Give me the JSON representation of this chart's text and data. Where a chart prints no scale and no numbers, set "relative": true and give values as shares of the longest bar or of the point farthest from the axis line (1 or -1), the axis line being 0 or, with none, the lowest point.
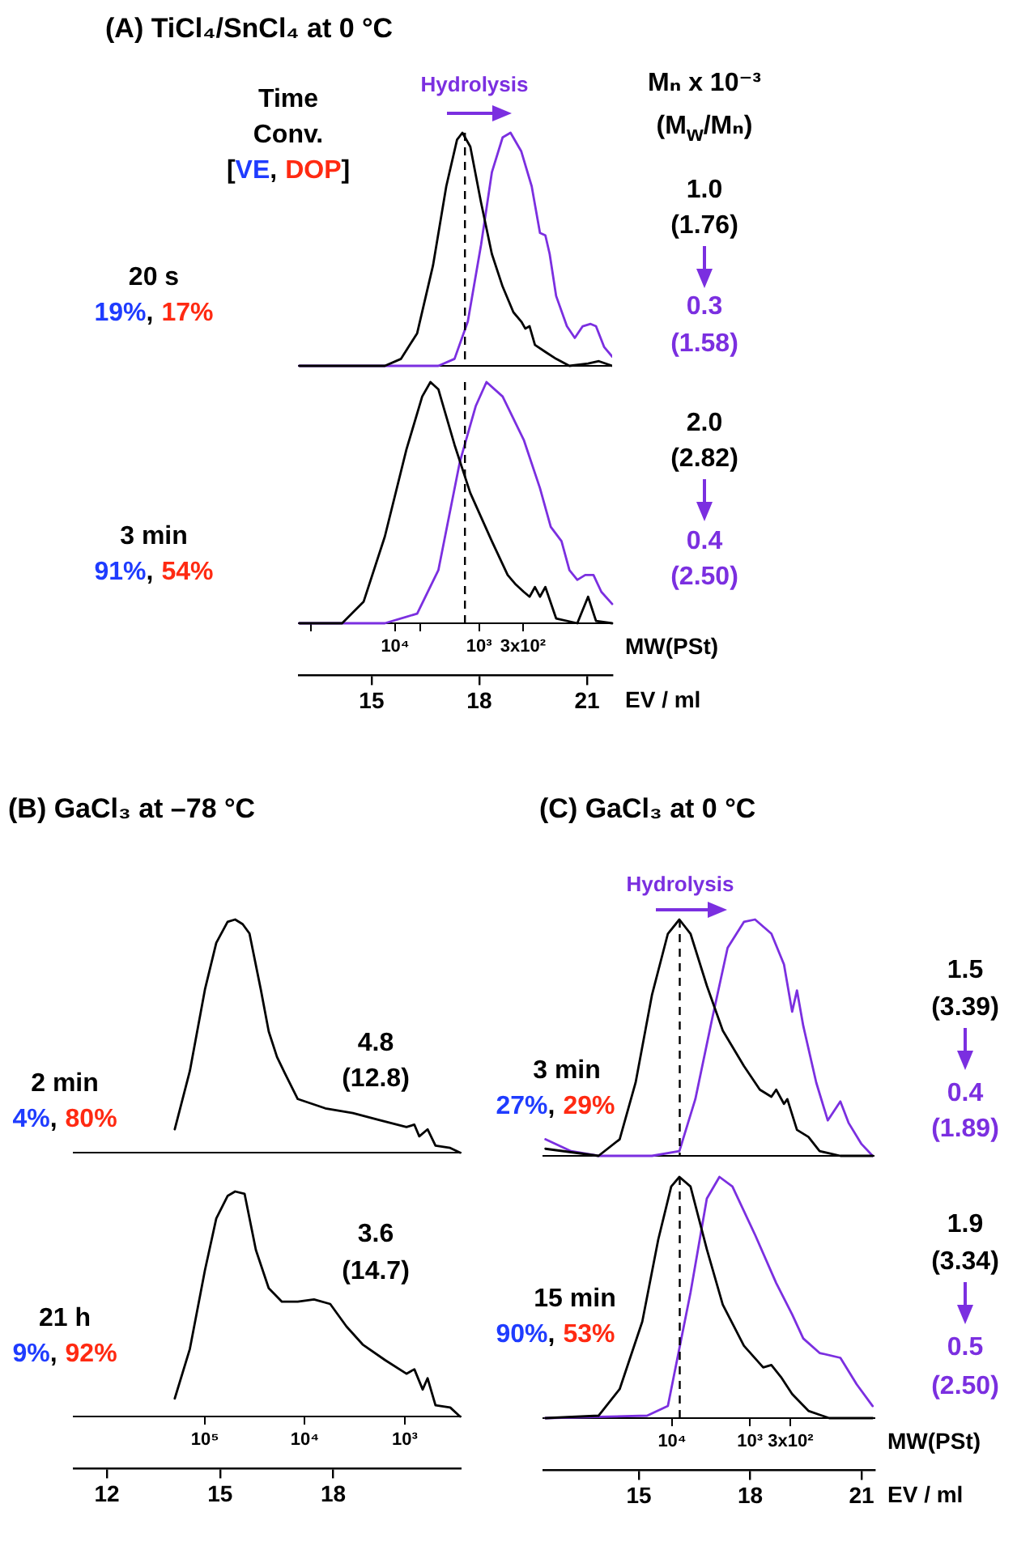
{
  "chart_data": [
    {
      "type": "line",
      "title": "(A) TiCl₄/SnCl₄ at 0 °C",
      "relative": true,
      "tick_labels": false,
      "xlim": [
        12.95,
        21.7
      ],
      "annotations": [
        "Time",
        "Conv.",
        "[",
        "VE",
        ",",
        "DOP",
        "]",
        "Hydrolysis",
        "Mₙ x 10⁻³",
        "(M$_{w}$/Mₙ)",
        "20 s",
        "19%",
        ",",
        "17%",
        "1.0",
        "(1.76)",
        "0.3",
        "(1.58)"
      ],
      "ref_lines": [
        {
          "axis": "x",
          "value": 17.6,
          "color": "#000000",
          "line_style": "dashed"
        }
      ],
      "series": [
        {
          "color": "#000000",
          "x": [
            12.99,
            15.37,
            15.82,
            16.27,
            16.71,
            17.08,
            17.38,
            17.53,
            17.75,
            18.05,
            18.35,
            18.65,
            18.95,
            19.17,
            19.28,
            19.4,
            19.55,
            19.84,
            20.14,
            20.51,
            21.03,
            21.33,
            21.7
          ],
          "values": [
            0,
            0,
            0.03,
            0.14,
            0.43,
            0.77,
            0.97,
            1,
            0.94,
            0.7,
            0.48,
            0.34,
            0.23,
            0.19,
            0.16,
            0.17,
            0.09,
            0.06,
            0.03,
            0,
            0.01,
            0.02,
            0
          ]
        },
        {
          "color": "#7b2fe0",
          "x": [
            12.99,
            16.86,
            17.31,
            17.68,
            18.05,
            18.35,
            18.65,
            18.87,
            19.17,
            19.46,
            19.69,
            19.84,
            19.96,
            20.14,
            20.44,
            20.66,
            20.88,
            21.1,
            21.25,
            21.48,
            21.7
          ],
          "values": [
            0,
            0,
            0.03,
            0.19,
            0.52,
            0.83,
            0.98,
            1,
            0.92,
            0.77,
            0.57,
            0.56,
            0.48,
            0.3,
            0.17,
            0.12,
            0.17,
            0.18,
            0.17,
            0.08,
            0.04
          ]
        }
      ]
    },
    {
      "type": "line",
      "relative": true,
      "tick_labels": "x",
      "xlim": [
        12.95,
        21.7
      ],
      "xticks": [
        15,
        18,
        21
      ],
      "xlabel": "EV / ml",
      "x2label": "MW(PSt)",
      "log": "x2",
      "x2lim": [
        144000,
        26
      ],
      "x2ticks": [
        {
          "value": 100000,
          "label": null
        },
        {
          "value": 10000,
          "label": "10⁴"
        },
        {
          "value": 5000,
          "label": null
        },
        {
          "value": 1000,
          "label": "10³"
        },
        {
          "value": 300,
          "label": "3x10²"
        }
      ],
      "annotations": [
        "3 min",
        "91%",
        ",",
        "54%",
        "2.0",
        "(2.82)",
        "0.4",
        "(2.50)"
      ],
      "ref_lines": [
        {
          "axis": "x",
          "value": 17.6,
          "color": "#000000",
          "line_style": "dashed"
        }
      ],
      "series": [
        {
          "color": "#000000",
          "x": [
            12.99,
            14.18,
            14.78,
            15.37,
            15.97,
            16.41,
            16.64,
            16.86,
            17.31,
            17.75,
            18.35,
            18.79,
            19.02,
            19.24,
            19.4,
            19.55,
            19.69,
            19.84,
            20.14,
            20.73,
            21.03,
            21.25,
            21.7
          ],
          "values": [
            0,
            0,
            0.09,
            0.36,
            0.72,
            0.94,
            1,
            0.97,
            0.74,
            0.54,
            0.34,
            0.2,
            0.16,
            0.13,
            0.11,
            0.15,
            0.11,
            0.15,
            0.02,
            0,
            0.11,
            0.01,
            0
          ]
        },
        {
          "color": "#7b2fe0",
          "x": [
            12.99,
            15.37,
            16.27,
            16.86,
            17.46,
            17.9,
            18.2,
            18.65,
            19.24,
            19.69,
            19.99,
            20.29,
            20.51,
            20.73,
            20.95,
            21.18,
            21.4,
            21.7
          ],
          "values": [
            0,
            0,
            0.04,
            0.22,
            0.67,
            0.9,
            1,
            0.94,
            0.76,
            0.56,
            0.4,
            0.34,
            0.22,
            0.18,
            0.2,
            0.2,
            0.13,
            0.08
          ]
        }
      ]
    },
    {
      "type": "line",
      "title": "(B) GaCl₃ at –78 °C",
      "relative": true,
      "tick_labels": false,
      "xlim": [
        11.1,
        21.4
      ],
      "annotations": [
        "2 min",
        "4%",
        ",",
        "80%",
        "4.8",
        "(12.8)"
      ],
      "series": [
        {
          "color": "#000000",
          "x": [
            13.8,
            14.2,
            14.6,
            14.9,
            15.2,
            15.4,
            15.6,
            15.78,
            16.08,
            16.29,
            16.51,
            16.72,
            17.06,
            17.79,
            18.52,
            19.21,
            19.94,
            20.15,
            20.28,
            20.5,
            20.71,
            21.1,
            21.36
          ],
          "values": [
            0.1,
            0.35,
            0.7,
            0.9,
            0.99,
            1,
            0.98,
            0.94,
            0.7,
            0.52,
            0.41,
            0.34,
            0.23,
            0.19,
            0.17,
            0.14,
            0.11,
            0.12,
            0.07,
            0.1,
            0.03,
            0.02,
            0
          ]
        }
      ]
    },
    {
      "type": "line",
      "relative": true,
      "tick_labels": "x",
      "xlim": [
        11.1,
        21.4
      ],
      "xticks": [
        12,
        15,
        18
      ],
      "log": "x2",
      "x2lim": [
        2100000,
        270
      ],
      "x2ticks": [
        {
          "value": 100000,
          "label": "10⁵"
        },
        {
          "value": 10000,
          "label": "10⁴"
        },
        {
          "value": 1000,
          "label": "10³"
        }
      ],
      "annotations": [
        "21 h",
        "9%",
        ",",
        "92%",
        "3.6",
        "(14.7)"
      ],
      "series": [
        {
          "color": "#000000",
          "x": [
            13.8,
            14.2,
            14.6,
            14.9,
            15.2,
            15.4,
            15.65,
            15.95,
            16.29,
            16.64,
            17.06,
            17.49,
            17.92,
            18.35,
            18.78,
            19.38,
            19.94,
            20.15,
            20.37,
            20.5,
            20.71,
            21.1,
            21.36
          ],
          "values": [
            0.08,
            0.3,
            0.65,
            0.88,
            0.98,
            1,
            0.99,
            0.74,
            0.57,
            0.51,
            0.51,
            0.52,
            0.5,
            0.4,
            0.32,
            0.25,
            0.19,
            0.21,
            0.12,
            0.17,
            0.05,
            0.04,
            0
          ]
        }
      ]
    },
    {
      "type": "line",
      "title": "(C) GaCl₃ at 0 °C",
      "relative": true,
      "tick_labels": false,
      "xlim": [
        12.4,
        21.35
      ],
      "annotations": [
        "Hydrolysis",
        "3 min",
        "27%",
        ",",
        "29%",
        "1.5",
        "(3.39)",
        "0.4",
        "(1.89)"
      ],
      "ref_lines": [
        {
          "axis": "x",
          "value": 16.1,
          "color": "#000000",
          "line_style": "dashed"
        }
      ],
      "series": [
        {
          "color": "#000000",
          "x": [
            12.48,
            13.91,
            14.48,
            14.91,
            15.35,
            15.78,
            16.09,
            16.39,
            16.83,
            17.26,
            17.83,
            18.26,
            18.57,
            18.7,
            18.91,
            19.0,
            19.26,
            19.57,
            19.87,
            20.43,
            21.3
          ],
          "values": [
            0.03,
            0,
            0.07,
            0.31,
            0.68,
            0.94,
            1,
            0.94,
            0.72,
            0.53,
            0.38,
            0.28,
            0.25,
            0.28,
            0.22,
            0.24,
            0.11,
            0.08,
            0.02,
            0,
            0
          ]
        },
        {
          "color": "#7b2fe0",
          "x": [
            12.48,
            13.17,
            13.91,
            15.35,
            16.09,
            16.52,
            16.96,
            17.39,
            17.83,
            18.13,
            18.57,
            18.91,
            19.13,
            19.26,
            19.43,
            19.78,
            20.09,
            20.43,
            20.65,
            21.0,
            21.3
          ],
          "values": [
            0.07,
            0.02,
            0,
            0,
            0.02,
            0.24,
            0.57,
            0.88,
            0.99,
            1,
            0.94,
            0.81,
            0.61,
            0.7,
            0.55,
            0.31,
            0.15,
            0.23,
            0.14,
            0.05,
            0
          ]
        }
      ]
    },
    {
      "type": "line",
      "relative": true,
      "tick_labels": "x",
      "xlim": [
        12.4,
        21.35
      ],
      "xticks": [
        15,
        18,
        21
      ],
      "xlabel": "EV / ml",
      "x2label": "MW(PSt)",
      "log": "x2",
      "x2lim": [
        464000,
        25
      ],
      "x2ticks": [
        {
          "value": 10000,
          "label": "10⁴"
        },
        {
          "value": 1000,
          "label": "10³"
        },
        {
          "value": 300,
          "label": "3x10²"
        }
      ],
      "annotations": [
        "15 min",
        "90%",
        ",",
        "53%",
        "1.9",
        "(3.34)",
        "0.5",
        "(2.50)"
      ],
      "ref_lines": [
        {
          "axis": "x",
          "value": 16.1,
          "color": "#000000",
          "line_style": "dashed"
        }
      ],
      "series": [
        {
          "color": "#000000",
          "x": [
            12.48,
            13.91,
            14.48,
            15.09,
            15.52,
            15.87,
            16.09,
            16.39,
            16.83,
            17.26,
            17.83,
            18.35,
            18.57,
            18.83,
            19.13,
            19.57,
            20.13,
            21.3
          ],
          "values": [
            0,
            0.01,
            0.12,
            0.4,
            0.74,
            0.96,
            1,
            0.96,
            0.7,
            0.47,
            0.3,
            0.21,
            0.22,
            0.17,
            0.1,
            0.03,
            0,
            0
          ]
        },
        {
          "color": "#7b2fe0",
          "x": [
            12.48,
            15.22,
            15.78,
            16.39,
            16.83,
            17.17,
            17.52,
            18.13,
            18.7,
            19.13,
            19.43,
            19.87,
            20.43,
            20.87,
            21.3
          ],
          "values": [
            0,
            0.01,
            0.05,
            0.52,
            0.91,
            1,
            0.96,
            0.76,
            0.56,
            0.43,
            0.33,
            0.27,
            0.25,
            0.14,
            0.05
          ]
        }
      ]
    }
  ]
}
